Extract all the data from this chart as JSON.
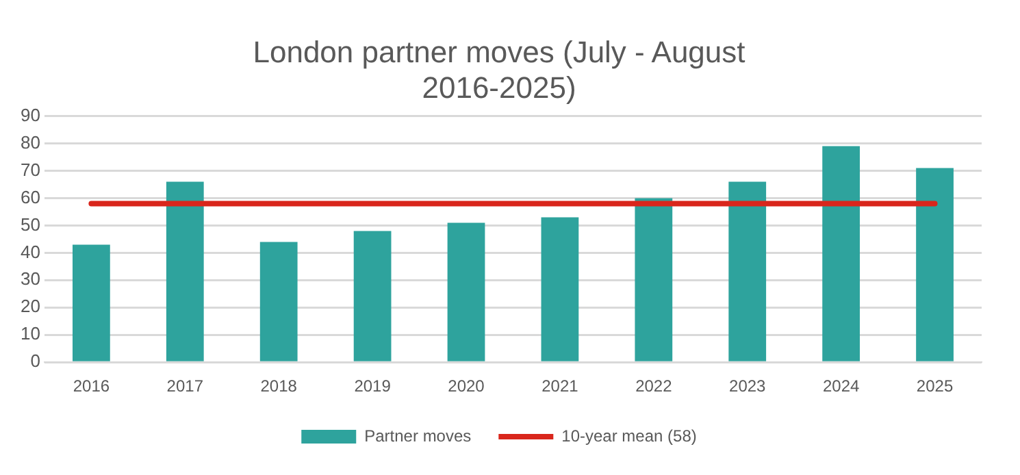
{
  "chart_data": {
    "type": "bar",
    "title": "London partner moves (July - August 2016-2025)",
    "categories": [
      "2016",
      "2017",
      "2018",
      "2019",
      "2020",
      "2021",
      "2022",
      "2023",
      "2024",
      "2025"
    ],
    "series": [
      {
        "name": "Partner moves",
        "color": "#2ea39d",
        "values": [
          43,
          66,
          44,
          48,
          51,
          53,
          60,
          66,
          79,
          71
        ]
      },
      {
        "name": "10-year mean (58)",
        "type": "line",
        "color": "#d9261c",
        "values": [
          58,
          58,
          58,
          58,
          58,
          58,
          58,
          58,
          58,
          58
        ]
      }
    ],
    "ylim": [
      0,
      90
    ],
    "yticks": [
      0,
      10,
      20,
      30,
      40,
      50,
      60,
      70,
      80,
      90
    ],
    "grid": "y",
    "legend": "bottom",
    "marker": "none"
  }
}
